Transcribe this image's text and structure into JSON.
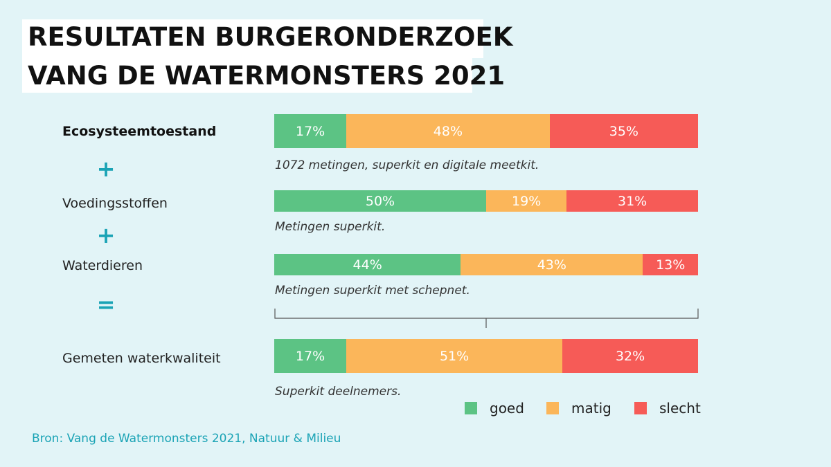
{
  "title": {
    "line1": "RESULTATEN BURGERONDERZOEK",
    "line2": "VANG DE WATERMONSTERS 2021"
  },
  "operators": [
    "+",
    "+",
    "="
  ],
  "colors": {
    "goed": "#5cc384",
    "matig": "#fbb65a",
    "slecht": "#f65b57"
  },
  "chart_data": {
    "type": "bar",
    "stacked": true,
    "orientation": "horizontal",
    "unit": "%",
    "categories": [
      "Ecosysteemtoestand",
      "Voedingsstoffen",
      "Waterdieren",
      "Gemeten waterkwaliteit"
    ],
    "series": [
      {
        "name": "goed",
        "values": [
          17,
          50,
          44,
          17
        ],
        "labels": [
          "17%",
          "50%",
          "44%",
          "17%"
        ]
      },
      {
        "name": "matig",
        "values": [
          48,
          19,
          43,
          51
        ],
        "labels": [
          "48%",
          "19%",
          "43%",
          "51%"
        ]
      },
      {
        "name": "slecht",
        "values": [
          35,
          31,
          13,
          32
        ],
        "labels": [
          "35%",
          "31%",
          "13%",
          "32%"
        ]
      }
    ],
    "notes": [
      "1072 metingen, superkit en digitale meetkit.",
      "Metingen superkit.",
      "Metingen superkit met schepnet.",
      "Superkit deelnemers."
    ],
    "legend": [
      "goed",
      "matig",
      "slecht"
    ],
    "legend_position": "bottom-right"
  },
  "source": "Bron: Vang de Watermonsters 2021, Natuur & Milieu"
}
